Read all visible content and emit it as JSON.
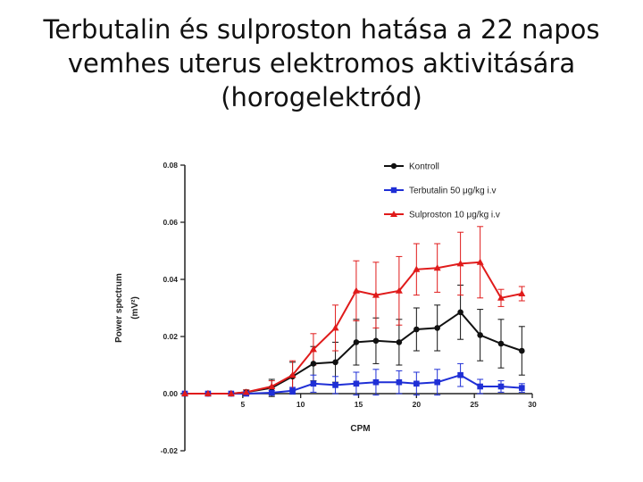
{
  "slide": {
    "title_lines": [
      "Terbutalin és sulproston hatása a 22 napos",
      "vemhes uterus elektromos aktivitására",
      "(horogelektród)"
    ]
  },
  "chart_data": {
    "type": "line",
    "xlabel": "CPM",
    "ylabel": "Power spectrum",
    "ylabel_unit": "(mV²)",
    "xlim": [
      0,
      30
    ],
    "ylim": [
      -0.02,
      0.08
    ],
    "xticks": [
      5,
      10,
      15,
      20,
      25,
      30
    ],
    "yticks": [
      -0.02,
      0.0,
      0.02,
      0.04,
      0.06,
      0.08
    ],
    "ytick_labels": [
      "-0.02",
      "0.00",
      "0.02",
      "0.04",
      "0.06",
      "0.08"
    ],
    "legend_position": "top-right",
    "x": [
      0,
      2,
      4,
      5.3,
      7.5,
      9.3,
      11.1,
      13,
      14.8,
      16.5,
      18.5,
      20,
      21.8,
      23.8,
      25.5,
      27.3,
      29.1
    ],
    "series": [
      {
        "name": "Kontroll",
        "color": "#111111",
        "marker": "circle",
        "values": [
          0.0,
          0.0,
          0.0,
          0.0005,
          0.002,
          0.006,
          0.0105,
          0.011,
          0.018,
          0.0185,
          0.018,
          0.0225,
          0.023,
          0.0285,
          0.0205,
          0.0175,
          0.015
        ],
        "errors": [
          0,
          0,
          0,
          0.0008,
          0.003,
          0.005,
          0.006,
          0.007,
          0.008,
          0.008,
          0.008,
          0.0075,
          0.008,
          0.0095,
          0.009,
          0.0085,
          0.0085
        ]
      },
      {
        "name": "Terbutalin 50 μg/kg i.v",
        "color": "#1f2fd6",
        "marker": "square",
        "values": [
          0.0,
          0.0,
          0.0,
          0.0,
          0.0003,
          0.001,
          0.0035,
          0.003,
          0.0035,
          0.004,
          0.004,
          0.0035,
          0.004,
          0.0065,
          0.0025,
          0.0025,
          0.002
        ],
        "errors": [
          0,
          0,
          0,
          0.0003,
          0.0008,
          0.0012,
          0.003,
          0.003,
          0.004,
          0.0045,
          0.004,
          0.004,
          0.0045,
          0.004,
          0.0025,
          0.002,
          0.0015
        ]
      },
      {
        "name": "Sulproston 10 μg/kg i.v",
        "color": "#e01b1b",
        "marker": "triangle",
        "values": [
          0.0,
          0.0,
          0.0,
          0.0005,
          0.0025,
          0.0065,
          0.0155,
          0.023,
          0.036,
          0.0345,
          0.036,
          0.0435,
          0.044,
          0.0455,
          0.046,
          0.0335,
          0.035
        ],
        "errors": [
          0,
          0,
          0,
          0.0008,
          0.002,
          0.005,
          0.0055,
          0.008,
          0.0105,
          0.0115,
          0.012,
          0.009,
          0.0085,
          0.011,
          0.0125,
          0.003,
          0.0025
        ]
      }
    ]
  }
}
